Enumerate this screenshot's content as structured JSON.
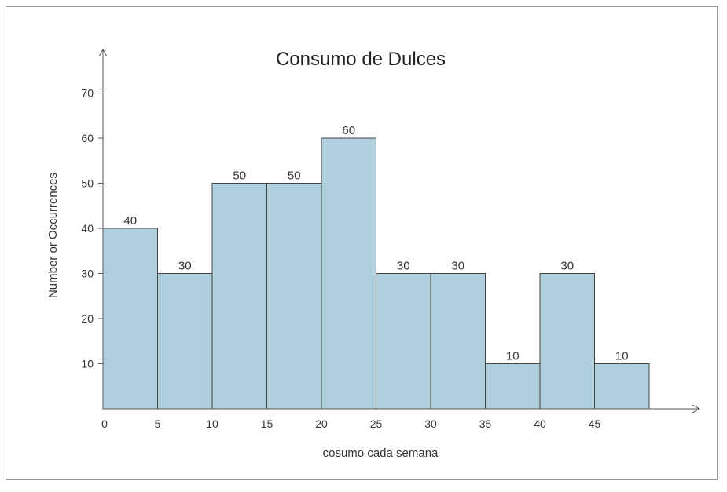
{
  "chart_data": {
    "type": "bar",
    "title": "Consumo de Dulces",
    "xlabel": "cosumo cada semana",
    "ylabel": "Number or Occurrences",
    "bin_edges": [
      0,
      5,
      10,
      15,
      20,
      25,
      30,
      35,
      40,
      45,
      50
    ],
    "x_tick_labels": [
      "0",
      "5",
      "10",
      "15",
      "20",
      "25",
      "30",
      "35",
      "40",
      "45"
    ],
    "values": [
      40,
      30,
      50,
      50,
      60,
      30,
      30,
      10,
      30,
      10
    ],
    "y_ticks": [
      10,
      20,
      30,
      40,
      50,
      60,
      70
    ],
    "ylim": [
      0,
      70
    ],
    "xlim": [
      0,
      50
    ],
    "grid": false,
    "legend": "none",
    "colors": {
      "bar_fill": "#b0d0dd",
      "bar_stroke": "#444444",
      "axis": "#555555"
    }
  }
}
